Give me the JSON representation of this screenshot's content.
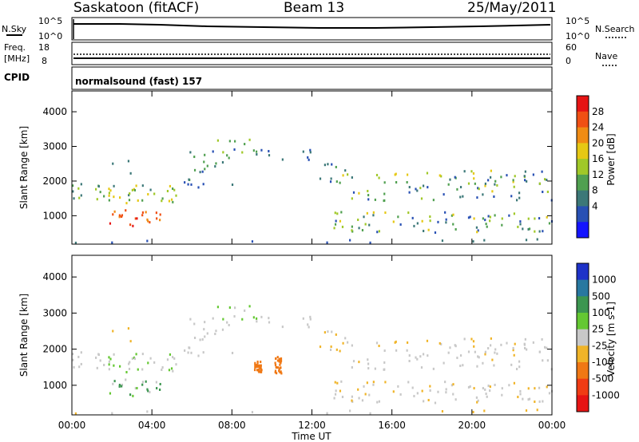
{
  "header": {
    "station": "Saskatoon (fitACF)",
    "beam": "Beam 13",
    "date": "25/May/2011"
  },
  "noise_panel": {
    "left_label": "N.Sky",
    "right_label": "N.Search",
    "left_ticks": [
      "10^5",
      "10^0"
    ],
    "right_ticks": [
      "10^5",
      "10^0"
    ]
  },
  "freq_panel": {
    "left_label_1": "Freq.",
    "left_label_2": "[MHz]",
    "right_label": "Nave",
    "left_ticks": [
      "18",
      "8"
    ],
    "right_ticks": [
      "60",
      "0"
    ]
  },
  "cpid": {
    "label": "CPID",
    "text": "normalsound (fast) 157"
  },
  "chart_data": [
    {
      "type": "heatmap",
      "quantity": "Power",
      "ylabel": "Slant Range [km]",
      "ylim": [
        180,
        4600
      ],
      "yticks": [
        "1000",
        "2000",
        "3000",
        "4000"
      ],
      "colorbar": {
        "label": "Power [dB]",
        "ticks": [
          "4",
          "8",
          "12",
          "16",
          "20",
          "24",
          "28"
        ],
        "colors": [
          "#1414ff",
          "#2850b4",
          "#3c7878",
          "#50a050",
          "#a0c828",
          "#e6c814",
          "#f08c14",
          "#f05014",
          "#e61414"
        ]
      }
    },
    {
      "type": "heatmap",
      "quantity": "Velocity",
      "ylabel": "Slant Range [km]",
      "xlabel": "Time UT",
      "ylim": [
        180,
        4600
      ],
      "yticks": [
        "1000",
        "2000",
        "3000",
        "4000"
      ],
      "xticks": [
        "00:00",
        "04:00",
        "08:00",
        "12:00",
        "16:00",
        "20:00",
        "00:00"
      ],
      "colorbar": {
        "label": "Velocity [m s-1]",
        "ticks": [
          "1000",
          "500",
          "100",
          "25",
          "-25",
          "-100",
          "-500",
          "-1000"
        ],
        "colors": [
          "#1e32c8",
          "#2878a0",
          "#3c9650",
          "#64c832",
          "#c8c8c8",
          "#f0b428",
          "#f07814",
          "#f03c14",
          "#e61414"
        ]
      }
    }
  ]
}
